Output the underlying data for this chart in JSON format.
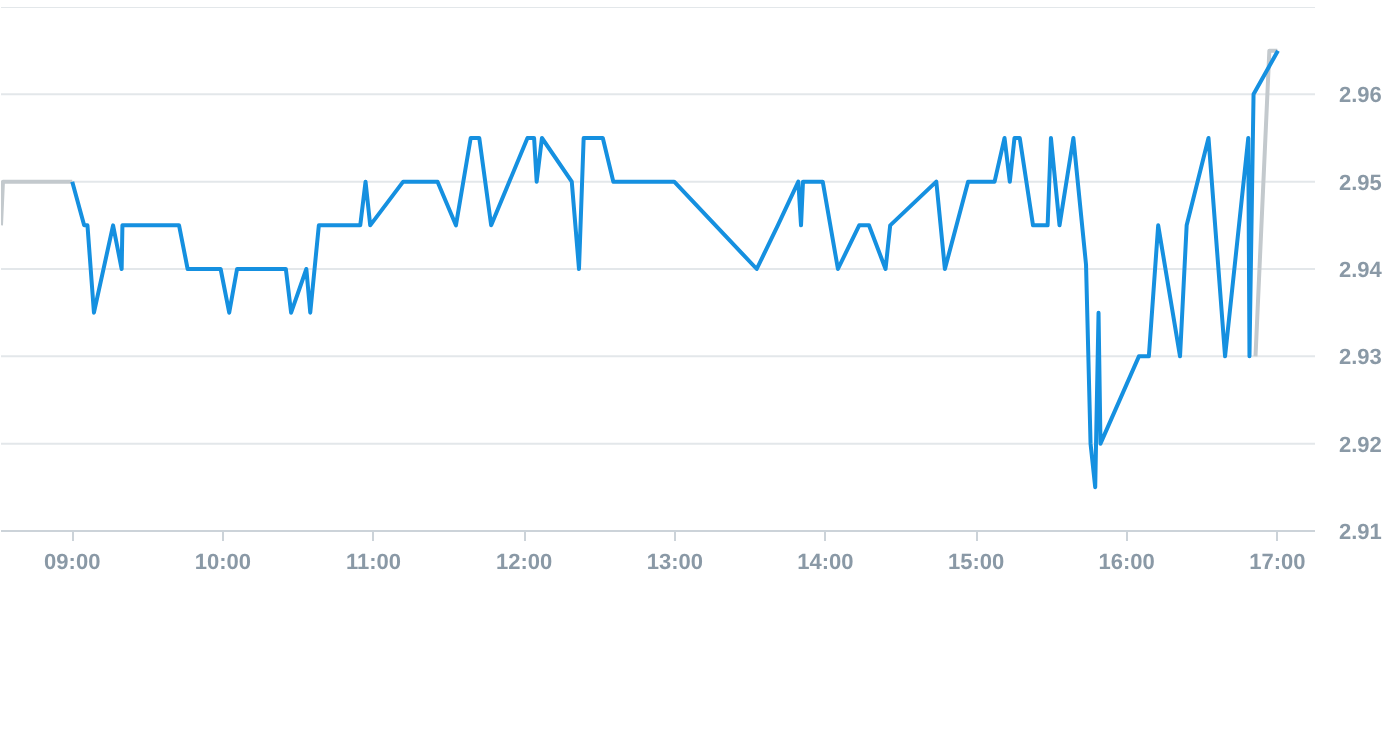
{
  "chart_data": {
    "type": "line",
    "x": [
      9.0,
      9.079,
      9.101,
      9.144,
      9.271,
      9.328,
      9.333,
      9.709,
      9.766,
      9.985,
      10.042,
      10.094,
      10.418,
      10.453,
      10.554,
      10.58,
      10.637,
      10.912,
      10.947,
      10.978,
      11.197,
      11.425,
      11.547,
      11.645,
      11.702,
      11.781,
      12.022,
      12.066,
      12.083,
      12.118,
      12.316,
      12.364,
      12.395,
      12.522,
      12.592,
      12.996,
      13.544,
      13.684,
      13.82,
      13.838,
      13.851,
      13.982,
      14.083,
      14.224,
      14.289,
      14.399,
      14.43,
      14.736,
      14.793,
      14.947,
      15.123,
      15.189,
      15.224,
      15.255,
      15.29,
      15.378,
      15.475,
      15.497,
      15.554,
      15.646,
      15.73,
      15.76,
      15.791,
      15.813,
      15.826,
      16.081,
      16.147,
      16.209,
      16.354,
      16.398,
      16.543,
      16.653,
      16.807,
      16.815,
      16.842,
      17.004
    ],
    "series": [
      {
        "color": "#c3c9cd",
        "x": [
          8.527,
          8.54,
          9.0,
          null,
          16.855,
          16.947,
          17.0
        ],
        "values": [
          2.945,
          2.95,
          2.95,
          null,
          2.93,
          2.965,
          2.965
        ]
      },
      {
        "color": "#1590e0",
        "values": [
          2.95,
          2.945,
          2.945,
          2.935,
          2.945,
          2.94,
          2.945,
          2.945,
          2.94,
          2.94,
          2.935,
          2.94,
          2.94,
          2.935,
          2.94,
          2.935,
          2.945,
          2.945,
          2.95,
          2.945,
          2.95,
          2.95,
          2.945,
          2.955,
          2.955,
          2.945,
          2.955,
          2.955,
          2.95,
          2.955,
          2.95,
          2.94,
          2.955,
          2.955,
          2.95,
          2.95,
          2.94,
          2.945,
          2.95,
          2.945,
          2.95,
          2.95,
          2.94,
          2.945,
          2.945,
          2.94,
          2.945,
          2.95,
          2.94,
          2.95,
          2.95,
          2.955,
          2.95,
          2.955,
          2.955,
          2.945,
          2.945,
          2.955,
          2.945,
          2.955,
          2.9405,
          2.92,
          2.915,
          2.935,
          2.92,
          2.93,
          2.93,
          2.945,
          2.93,
          2.945,
          2.955,
          2.93,
          2.955,
          2.93,
          2.96,
          2.965
        ]
      }
    ],
    "xlim": [
      8.527,
      17.25
    ],
    "ylim": [
      2.91,
      2.97
    ],
    "xticks": [
      {
        "value": 9,
        "label": "09:00"
      },
      {
        "value": 10,
        "label": "10:00"
      },
      {
        "value": 11,
        "label": "11:00"
      },
      {
        "value": 12,
        "label": "12:00"
      },
      {
        "value": 13,
        "label": "13:00"
      },
      {
        "value": 14,
        "label": "14:00"
      },
      {
        "value": 15,
        "label": "15:00"
      },
      {
        "value": 16,
        "label": "16:00"
      },
      {
        "value": 17,
        "label": "17:00"
      }
    ],
    "yticks": [
      2.91,
      2.92,
      2.93,
      2.94,
      2.95,
      2.96,
      {
        "value": 2.97,
        "label": null
      }
    ],
    "grid": "y",
    "marker": "none",
    "line_style": "solid"
  }
}
